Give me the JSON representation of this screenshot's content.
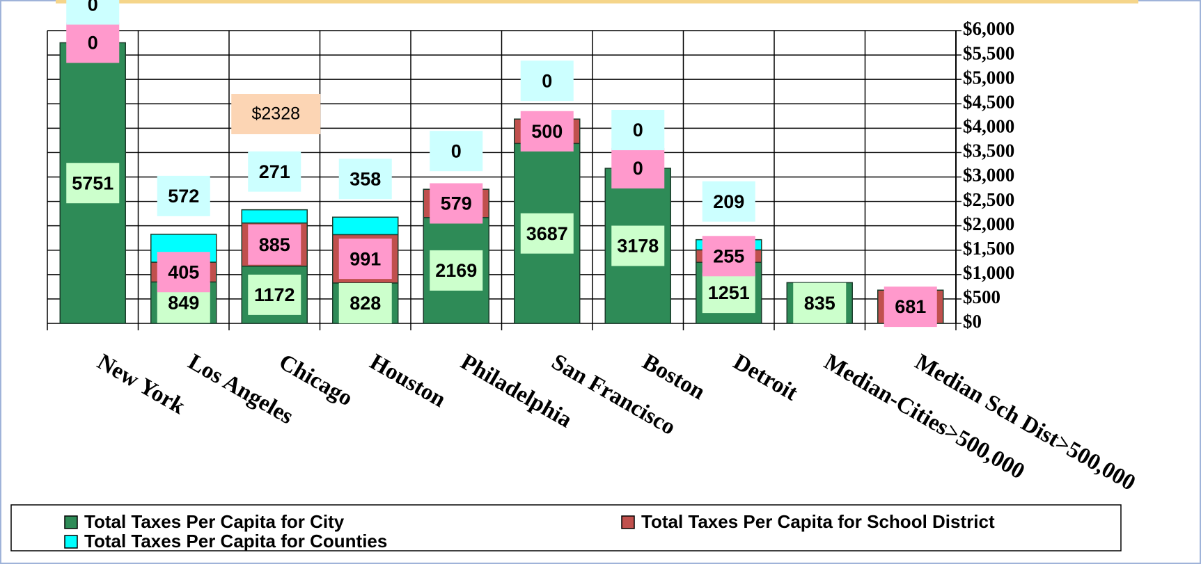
{
  "chart_data": {
    "type": "bar",
    "stacked": true,
    "categories": [
      "New York",
      "Los Angeles",
      "Chicago",
      "Houston",
      "Philadelphia",
      "San Francisco",
      "Boston",
      "Detroit",
      "Median-Cities>500,000",
      "Median Sch Dist>500,000"
    ],
    "series": [
      {
        "name": "Total Taxes Per Capita for City",
        "color": "#2e8b57",
        "label_color": "#ccffcc",
        "values": [
          5751,
          849,
          1172,
          828,
          2169,
          3687,
          3178,
          1251,
          835,
          0
        ],
        "value_labels": [
          "5751",
          "849",
          "1172",
          "828",
          "2169",
          "3687",
          "3178",
          "1251",
          "835",
          null
        ]
      },
      {
        "name": "Total Taxes Per Capita for School District",
        "color": "#c0504d",
        "label_color": "#ff99cc",
        "values": [
          0,
          405,
          885,
          991,
          579,
          500,
          0,
          255,
          0,
          681
        ],
        "value_labels": [
          "0",
          "405",
          "885",
          "991",
          "579",
          "500",
          "0",
          "255",
          null,
          "681"
        ]
      },
      {
        "name": "Total Taxes Per Capita for Counties",
        "color": "#00ffff",
        "label_color": "#ccffff",
        "values": [
          0,
          572,
          271,
          358,
          0,
          0,
          0,
          209,
          0,
          0
        ],
        "value_labels": [
          "0",
          "572",
          "271",
          "358",
          "0",
          "0",
          "0",
          "209",
          null,
          null
        ]
      }
    ],
    "annotations": [
      {
        "text": "$2328",
        "category": 2
      }
    ],
    "ylim": [
      0,
      6000
    ],
    "yticks": [
      {
        "value": 0,
        "label": "$0"
      },
      {
        "value": 500,
        "label": "$500"
      },
      {
        "value": 1000,
        "label": "$1,000"
      },
      {
        "value": 1500,
        "label": "$1,500"
      },
      {
        "value": 2000,
        "label": "$2,000"
      },
      {
        "value": 2500,
        "label": "$2,500"
      },
      {
        "value": 3000,
        "label": "$3,000"
      },
      {
        "value": 3500,
        "label": "$3,500"
      },
      {
        "value": 4000,
        "label": "$4,000"
      },
      {
        "value": 4500,
        "label": "$4,500"
      },
      {
        "value": 5000,
        "label": "$5,000"
      },
      {
        "value": 5500,
        "label": "$5,500"
      },
      {
        "value": 6000,
        "label": "$6,000"
      }
    ],
    "yaxis_side": "right",
    "grid": true,
    "legend": "bottom"
  }
}
